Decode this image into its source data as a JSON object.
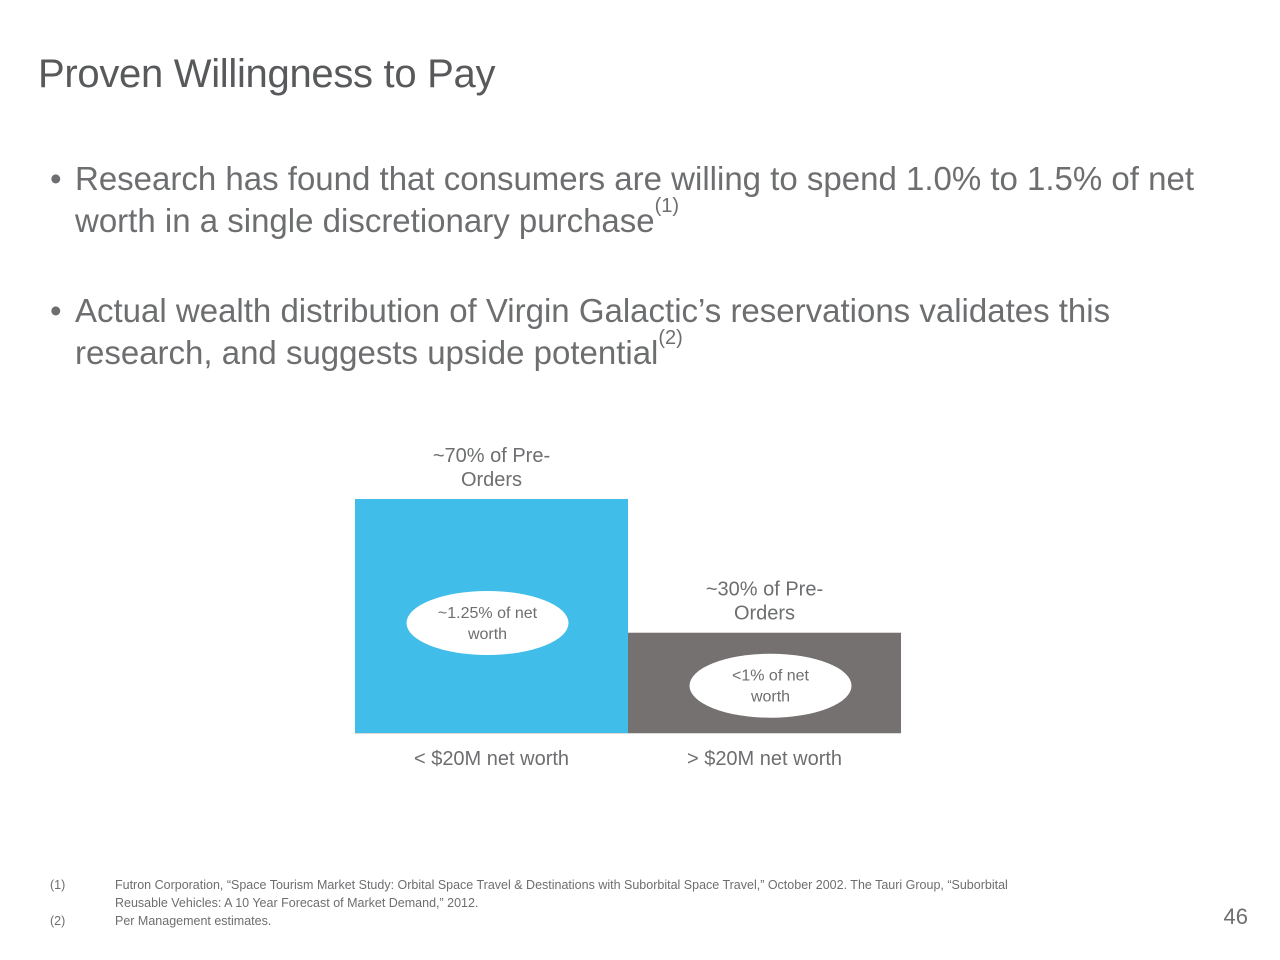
{
  "slide": {
    "title": "Proven Willingness to Pay",
    "bullets": [
      {
        "text": "Research has found that consumers are willing to spend 1.0% to 1.5% of net worth in a single discretionary purchase",
        "sup": "(1)"
      },
      {
        "text": "Actual wealth distribution of Virgin Galactic’s reservations validates this research, and suggests upside potential",
        "sup": "(2)"
      }
    ],
    "footnotes": [
      {
        "num": "(1)",
        "text": "Futron Corporation, “Space Tourism Market Study: Orbital Space Travel & Destinations with Suborbital Space Travel,” October 2002. The Tauri Group, “Suborbital Reusable Vehicles: A 10 Year Forecast of Market Demand,” 2012."
      },
      {
        "num": "(2)",
        "text": "Per Management estimates."
      }
    ],
    "page_number": "46"
  },
  "chart_data": {
    "type": "bar",
    "categories": [
      "< $20M net worth",
      "> $20M net worth"
    ],
    "values": [
      70,
      30
    ],
    "value_labels": [
      [
        "~70% of Pre-",
        "Orders"
      ],
      [
        "~30% of Pre-",
        "Orders"
      ]
    ],
    "bubble_labels": [
      [
        "~1.25% of net",
        "worth"
      ],
      [
        "<1% of net",
        "worth"
      ]
    ],
    "colors": [
      "#40bde8",
      "#767171"
    ],
    "ylim": [
      0,
      70
    ],
    "grid": false
  }
}
